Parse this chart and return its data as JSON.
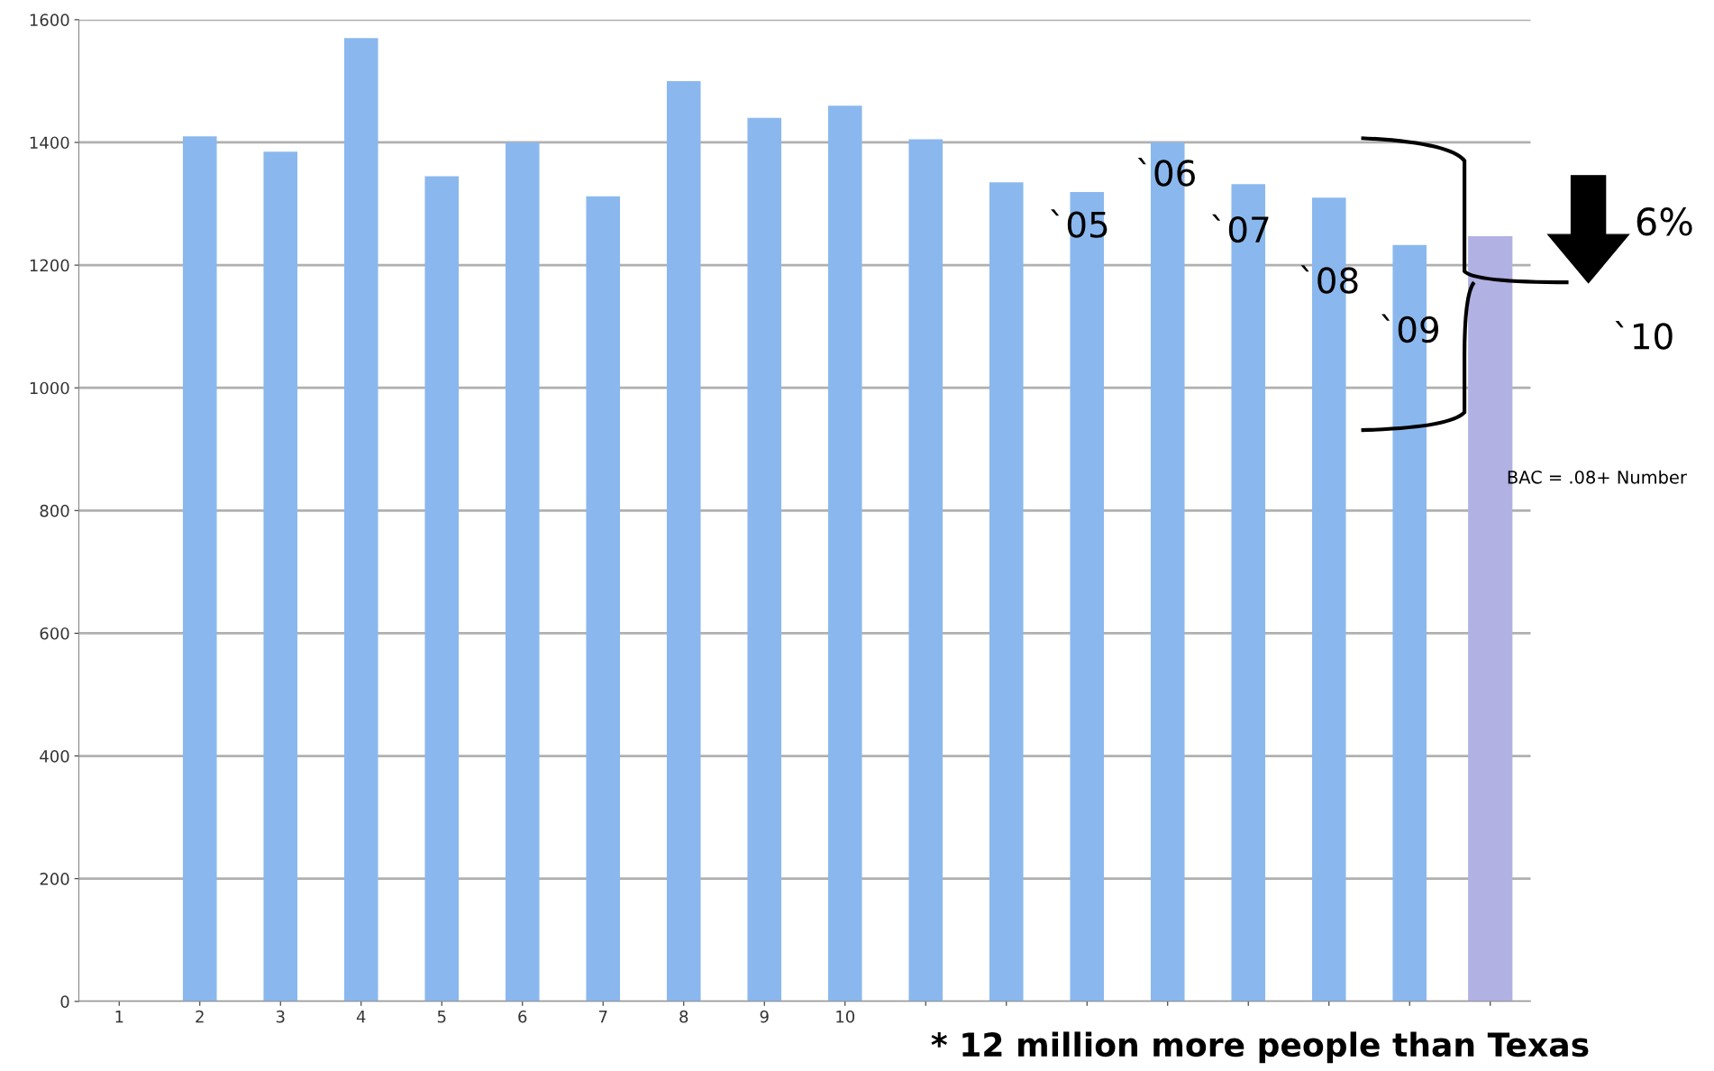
{
  "chart_data": {
    "type": "bar",
    "categories": [
      "1",
      "2",
      "3",
      "4",
      "5",
      "6",
      "7",
      "8",
      "9",
      "10",
      null,
      null,
      null,
      null,
      null,
      null,
      null,
      null
    ],
    "series": [
      {
        "colors": [
          "#8ab8ee",
          "#8ab8ee",
          "#8ab8ee",
          "#8ab8ee",
          "#8ab8ee",
          "#8ab8ee",
          "#8ab8ee",
          "#8ab8ee",
          "#8ab8ee",
          "#8ab8ee",
          "#8ab8ee",
          "#8ab8ee",
          "#8ab8ee",
          "#8ab8ee",
          "#8ab8ee",
          "#8ab8ee",
          "#8ab8ee",
          "#b1b1e3"
        ],
        "values": [
          null,
          1410,
          1385,
          1570,
          1345,
          1400,
          1312,
          1500,
          1440,
          1460,
          1405,
          1335,
          1319,
          1400,
          1332,
          1310,
          1233,
          1247
        ]
      }
    ],
    "ylim": [
      0,
      1600
    ],
    "yticks": [
      0,
      200,
      400,
      600,
      800,
      1000,
      1200,
      1400,
      1600
    ],
    "grid": "y",
    "annotations": [
      "`05",
      "`06",
      "`07",
      "`08",
      "`09",
      "`10",
      "6%",
      "BAC = .08+ Number",
      "* 12 million more people than Texas"
    ]
  }
}
